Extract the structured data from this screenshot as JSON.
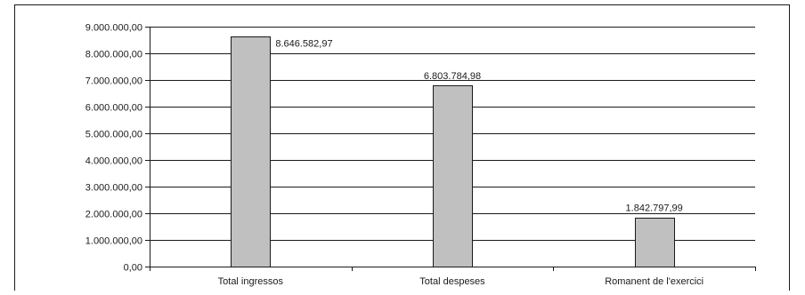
{
  "chart_data": {
    "type": "bar",
    "title": "",
    "xlabel": "",
    "ylabel": "",
    "categories": [
      "Total ingressos",
      "Total despeses",
      "Romanent de l'exercici"
    ],
    "values": [
      8646582.97,
      6803784.98,
      1842797.99
    ],
    "data_labels": [
      "8.646.582,97",
      "6.803.784,98",
      "1.842.797,99"
    ],
    "ylim": [
      0,
      9000000
    ],
    "yticks": [
      0,
      1000000,
      2000000,
      3000000,
      4000000,
      5000000,
      6000000,
      7000000,
      8000000,
      9000000
    ],
    "ytick_labels": [
      "0,00",
      "1.000.000,00",
      "2.000.000,00",
      "3.000.000,00",
      "4.000.000,00",
      "5.000.000,00",
      "6.000.000,00",
      "7.000.000,00",
      "8.000.000,00",
      "9.000.000,00"
    ],
    "grid": true,
    "legend": "none",
    "colors": {
      "bar_fill": "#c0c0c0",
      "bar_stroke": "#1a1a1a",
      "grid": "#1a1a1a",
      "frame": "#1a1a1a"
    }
  }
}
